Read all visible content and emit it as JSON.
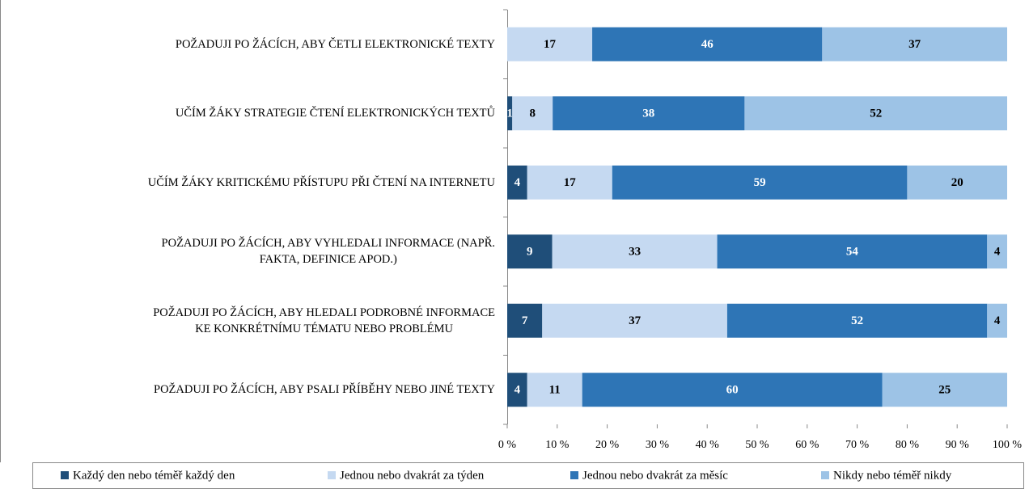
{
  "chart_data": {
    "type": "stacked_bar_100",
    "categories": [
      "POŽADUJI PO ŽÁCÍCH, ABY ČETLI ELEKTRONICKÉ TEXTY",
      "UČÍM ŽÁKY STRATEGIE ČTENÍ ELEKTRONICKÝCH TEXTŮ",
      "UČÍM ŽÁKY KRITICKÉMU PŘÍSTUPU PŘI ČTENÍ NA INTERNETU",
      "POŽADUJI PO ŽÁCÍCH, ABY VYHLEDALI INFORMACE (NAPŘ.\nFAKTA, DEFINICE APOD.)",
      "POŽADUJI PO ŽÁCÍCH, ABY HLEDALI PODROBNÉ INFORMACE\nKE KONKRÉTNÍMU TÉMATU NEBO PROBLÉMU",
      "POŽADUJI PO ŽÁCÍCH, ABY PSALI PŘÍBĚHY NEBO JINÉ TEXTY"
    ],
    "series": [
      {
        "name": "Každý den nebo téměř každý den",
        "color": "#1f4e79",
        "values": [
          null,
          1,
          4,
          9,
          7,
          4
        ]
      },
      {
        "name": "Jednou nebo dvakrát za týden",
        "color": "#c5d9f1",
        "values": [
          17,
          8,
          17,
          33,
          37,
          11
        ]
      },
      {
        "name": "Jednou nebo dvakrát za měsíc",
        "color": "#2e75b6",
        "values": [
          46,
          38,
          59,
          54,
          52,
          60
        ]
      },
      {
        "name": "Nikdy nebo téměř nikdy",
        "color": "#9dc3e6",
        "values": [
          37,
          52,
          20,
          4,
          4,
          25
        ]
      }
    ],
    "xlim": [
      0,
      100
    ],
    "xticks": [
      {
        "value": 0,
        "label": "0 %"
      },
      {
        "value": 10,
        "label": "10 %"
      },
      {
        "value": 20,
        "label": "20 %"
      },
      {
        "value": 30,
        "label": "30 %"
      },
      {
        "value": 40,
        "label": "40 %"
      },
      {
        "value": 50,
        "label": "50 %"
      },
      {
        "value": 60,
        "label": "60 %"
      },
      {
        "value": 70,
        "label": "70 %"
      },
      {
        "value": 80,
        "label": "80 %"
      },
      {
        "value": 90,
        "label": "90 %"
      },
      {
        "value": 100,
        "label": "100 %"
      }
    ],
    "legend": "bottom"
  }
}
